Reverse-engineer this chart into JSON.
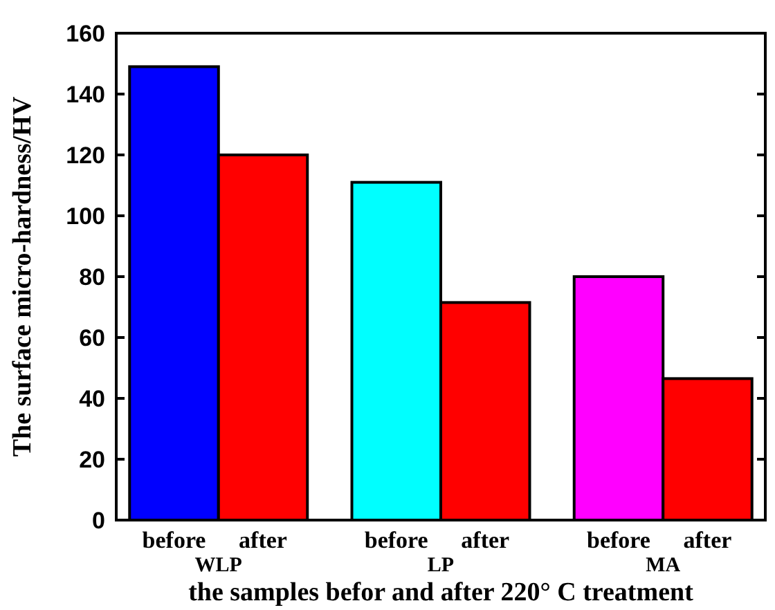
{
  "chart_data": {
    "type": "bar",
    "xlabel": "the samples befor and after 220° C treatment",
    "ylabel": "The surface micro-hardness/HV",
    "categories": [
      "WLP",
      "LP",
      "MA"
    ],
    "series": [
      {
        "name": "before",
        "colors": [
          "#0000ff",
          "#00ffff",
          "#ff00ff"
        ],
        "values": [
          149,
          111,
          80
        ]
      },
      {
        "name": "after",
        "colors": [
          "#ff0000",
          "#ff0000",
          "#ff0000"
        ],
        "values": [
          120,
          71.5,
          46.5
        ]
      }
    ],
    "ylim": [
      0,
      160
    ],
    "yticks": [
      0,
      20,
      40,
      60,
      80,
      100,
      120,
      140,
      160
    ],
    "grid": false
  }
}
